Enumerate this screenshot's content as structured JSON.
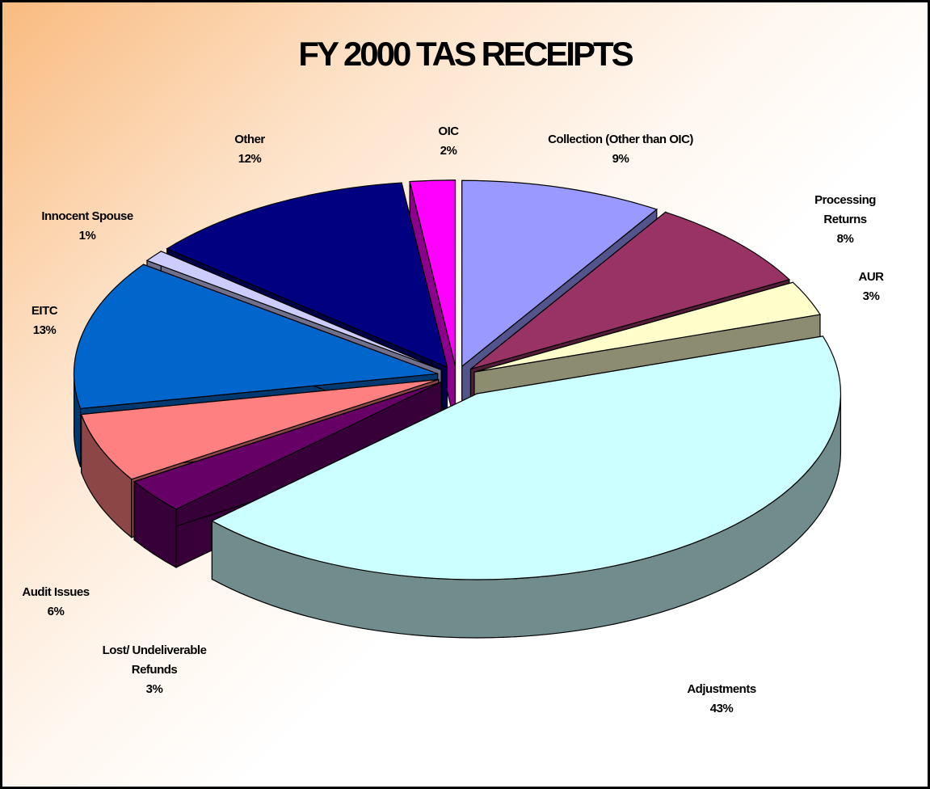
{
  "chart_data": {
    "type": "pie",
    "title": "FY 2000 TAS RECEIPTS",
    "categories": [
      "Collection (Other than OIC)",
      "Processing Returns",
      "AUR",
      "Adjustments",
      "Lost/ Undeliverable Refunds",
      "Audit Issues",
      "EITC",
      "Innocent Spouse",
      "Other",
      "OIC"
    ],
    "values": [
      9,
      8,
      3,
      43,
      3,
      6,
      13,
      1,
      12,
      2
    ],
    "value_labels": [
      "9%",
      "8%",
      "3%",
      "43%",
      "3%",
      "6%",
      "13%",
      "1%",
      "12%",
      "2%"
    ],
    "colors": [
      "#9999ff",
      "#993366",
      "#ffffcc",
      "#ccffff",
      "#660066",
      "#ff8080",
      "#0066cc",
      "#ccccff",
      "#000080",
      "#ff00ff"
    ]
  }
}
